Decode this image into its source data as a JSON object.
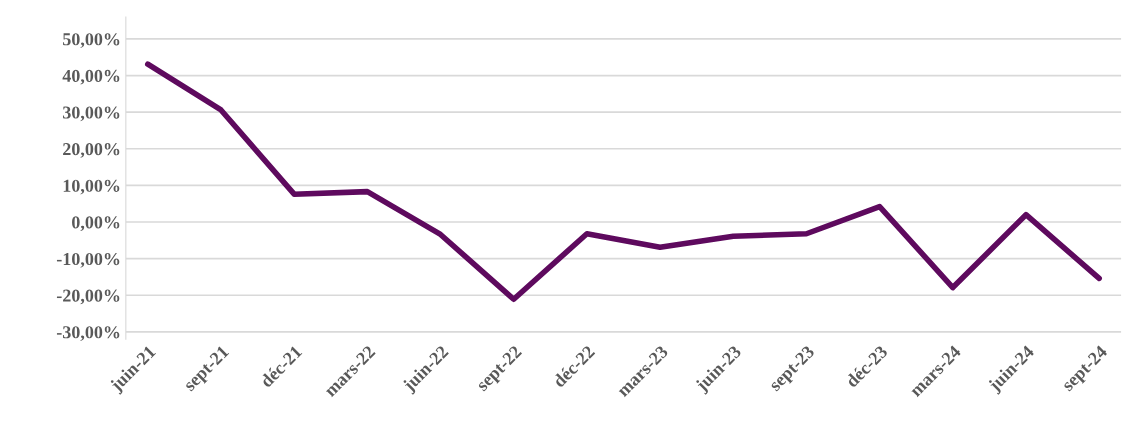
{
  "chart_data": {
    "type": "line",
    "categories": [
      "juin-21",
      "sept-21",
      "déc-21",
      "mars-22",
      "juin-22",
      "sept-22",
      "déc-22",
      "mars-23",
      "juin-23",
      "sept-23",
      "déc-23",
      "mars-24",
      "juin-24",
      "sept-24"
    ],
    "series": [
      {
        "color": "#5e0a5e",
        "values": [
          43.1,
          30.6,
          7.6,
          8.3,
          -3.4,
          -21.1,
          -3.2,
          -6.9,
          -3.9,
          -3.2,
          4.2,
          -17.9,
          2.0,
          -15.4
        ]
      }
    ],
    "ylim": [
      -32,
      56
    ],
    "yticks": [
      {
        "value": -30,
        "label": "-30,00%"
      },
      {
        "value": -20,
        "label": "-20,00%"
      },
      {
        "value": -10,
        "label": "-10,00%"
      },
      {
        "value": 0,
        "label": "0,00%"
      },
      {
        "value": 10,
        "label": "10,00%"
      },
      {
        "value": 20,
        "label": "20,00%"
      },
      {
        "value": 30,
        "label": "30,00%"
      },
      {
        "value": 40,
        "label": "40,00%"
      },
      {
        "value": 50,
        "label": "50,00%"
      }
    ],
    "grid": "y",
    "legend": false,
    "marker": "none",
    "line_style": "solid"
  }
}
